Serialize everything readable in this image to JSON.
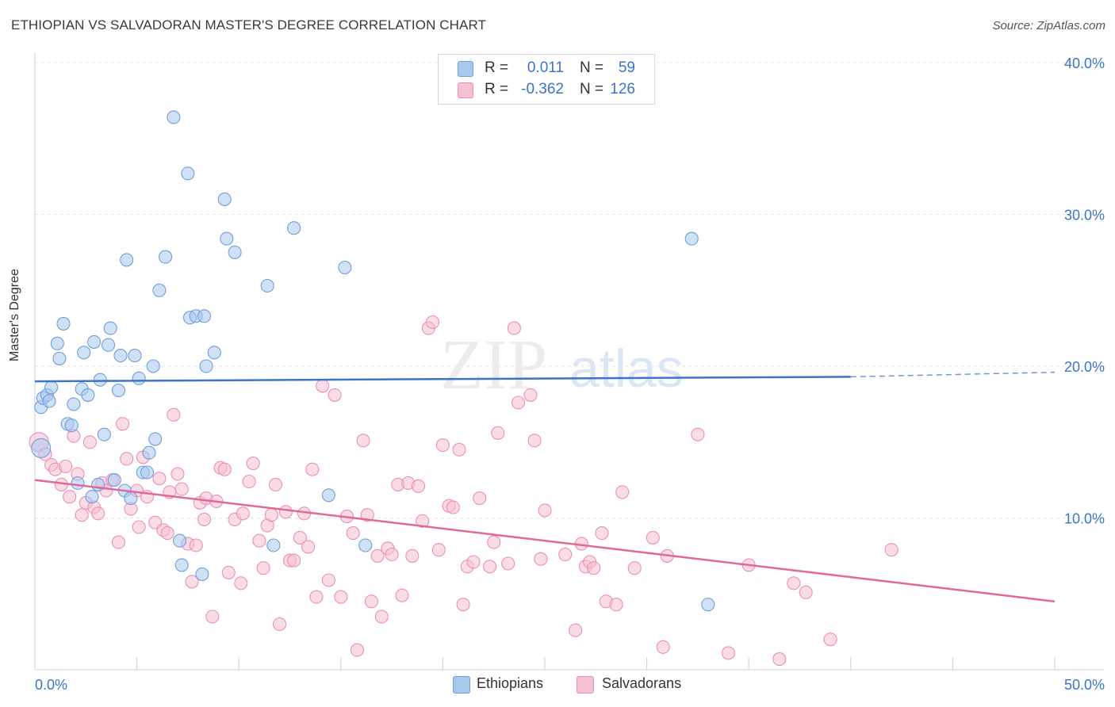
{
  "title": "ETHIOPIAN VS SALVADORAN MASTER'S DEGREE CORRELATION CHART",
  "source": "Source: ZipAtlas.com",
  "watermark": {
    "zip": "ZIP",
    "atlas": "atlas"
  },
  "legend": {
    "rows": [
      {
        "r_label": "R =",
        "r_value": "0.011",
        "n_label": "N =",
        "n_value": "59"
      },
      {
        "r_label": "R =",
        "r_value": "-0.362",
        "n_label": "N =",
        "n_value": "126"
      }
    ]
  },
  "bottom_legend": [
    "Ethiopians",
    "Salvadorans"
  ],
  "colors": {
    "blue": "#3b74c9",
    "blue_fill": "#a9c8ee",
    "blue_stroke": "#6f9fdc",
    "pink": "#e0689a",
    "pink_fill": "#f5c0d3",
    "pink_stroke": "#ec8fb3",
    "grid": "#e3e3e3",
    "axis_text": "#3b74c9"
  },
  "chart_data": {
    "type": "scatter",
    "title": "ETHIOPIAN VS SALVADORAN MASTER'S DEGREE CORRELATION CHART",
    "xlabel": "",
    "ylabel": "Master's Degree",
    "xlim": [
      0,
      50
    ],
    "ylim": [
      0,
      40
    ],
    "x_tick_labels": [
      "0.0%",
      "50.0%"
    ],
    "y_ticks": [
      10,
      20,
      30,
      40
    ],
    "y_tick_labels": [
      "10.0%",
      "20.0%",
      "30.0%",
      "40.0%"
    ],
    "series": [
      {
        "name": "Ethiopians",
        "r": 0.011,
        "n": 59,
        "trend": {
          "x0": 0,
          "y0": 19.0,
          "x1": 40,
          "y1": 19.3,
          "dash_to_x": 50,
          "dash_to_y": 19.6
        },
        "points": [
          [
            0.3,
            14.6
          ],
          [
            0.3,
            17.3
          ],
          [
            0.4,
            17.9
          ],
          [
            0.6,
            18.1
          ],
          [
            0.7,
            17.7
          ],
          [
            0.8,
            18.6
          ],
          [
            1.1,
            21.5
          ],
          [
            1.2,
            20.5
          ],
          [
            1.4,
            22.8
          ],
          [
            1.6,
            16.2
          ],
          [
            1.8,
            16.1
          ],
          [
            1.9,
            17.5
          ],
          [
            2.1,
            12.3
          ],
          [
            2.3,
            18.5
          ],
          [
            2.4,
            20.9
          ],
          [
            2.6,
            18.1
          ],
          [
            2.8,
            11.4
          ],
          [
            2.9,
            21.6
          ],
          [
            3.1,
            12.2
          ],
          [
            3.2,
            19.1
          ],
          [
            3.4,
            15.5
          ],
          [
            3.6,
            21.4
          ],
          [
            3.7,
            22.5
          ],
          [
            3.9,
            12.5
          ],
          [
            4.1,
            18.4
          ],
          [
            4.2,
            20.7
          ],
          [
            4.4,
            11.8
          ],
          [
            4.5,
            27.0
          ],
          [
            4.7,
            11.3
          ],
          [
            4.9,
            20.7
          ],
          [
            5.1,
            19.2
          ],
          [
            5.3,
            13.0
          ],
          [
            5.5,
            13.0
          ],
          [
            5.6,
            14.3
          ],
          [
            5.8,
            20.0
          ],
          [
            5.9,
            15.2
          ],
          [
            6.1,
            25.0
          ],
          [
            6.4,
            27.2
          ],
          [
            6.8,
            36.4
          ],
          [
            7.1,
            8.5
          ],
          [
            7.2,
            6.9
          ],
          [
            7.5,
            32.7
          ],
          [
            7.6,
            23.2
          ],
          [
            7.9,
            23.3
          ],
          [
            8.3,
            23.3
          ],
          [
            8.4,
            20.0
          ],
          [
            8.2,
            6.3
          ],
          [
            8.8,
            20.9
          ],
          [
            9.3,
            31.0
          ],
          [
            9.4,
            28.4
          ],
          [
            9.8,
            27.5
          ],
          [
            11.4,
            25.3
          ],
          [
            11.7,
            8.2
          ],
          [
            12.7,
            29.1
          ],
          [
            14.4,
            11.5
          ],
          [
            15.2,
            26.5
          ],
          [
            16.2,
            8.2
          ],
          [
            32.2,
            28.4
          ],
          [
            33.0,
            4.3
          ]
        ]
      },
      {
        "name": "Salvadorans",
        "r": -0.362,
        "n": 126,
        "trend": {
          "x0": 0,
          "y0": 12.5,
          "x1": 50,
          "y1": 4.5
        },
        "points": [
          [
            0.2,
            15.0
          ],
          [
            0.5,
            14.2
          ],
          [
            0.8,
            13.5
          ],
          [
            1.0,
            13.2
          ],
          [
            1.3,
            12.2
          ],
          [
            1.5,
            13.4
          ],
          [
            1.7,
            11.4
          ],
          [
            1.9,
            15.4
          ],
          [
            2.1,
            12.9
          ],
          [
            2.3,
            10.2
          ],
          [
            2.5,
            11.0
          ],
          [
            2.7,
            15.0
          ],
          [
            2.9,
            10.7
          ],
          [
            3.1,
            10.3
          ],
          [
            3.3,
            12.3
          ],
          [
            3.5,
            11.8
          ],
          [
            3.8,
            12.5
          ],
          [
            4.1,
            8.4
          ],
          [
            4.3,
            16.2
          ],
          [
            4.5,
            13.9
          ],
          [
            4.7,
            10.6
          ],
          [
            5.0,
            11.8
          ],
          [
            5.1,
            9.4
          ],
          [
            5.3,
            14.0
          ],
          [
            5.5,
            11.4
          ],
          [
            5.9,
            9.7
          ],
          [
            6.1,
            12.6
          ],
          [
            6.3,
            9.2
          ],
          [
            6.5,
            9.0
          ],
          [
            6.6,
            11.7
          ],
          [
            6.8,
            16.8
          ],
          [
            7.0,
            12.9
          ],
          [
            7.2,
            11.9
          ],
          [
            7.5,
            8.3
          ],
          [
            7.7,
            5.8
          ],
          [
            7.9,
            8.2
          ],
          [
            8.1,
            11.0
          ],
          [
            8.3,
            9.9
          ],
          [
            8.4,
            11.3
          ],
          [
            8.7,
            3.5
          ],
          [
            8.9,
            11.1
          ],
          [
            9.1,
            13.3
          ],
          [
            9.3,
            13.2
          ],
          [
            9.5,
            6.4
          ],
          [
            9.8,
            9.9
          ],
          [
            10.1,
            5.7
          ],
          [
            10.2,
            10.3
          ],
          [
            10.5,
            12.4
          ],
          [
            10.7,
            13.6
          ],
          [
            11.0,
            8.5
          ],
          [
            11.2,
            6.7
          ],
          [
            11.4,
            9.5
          ],
          [
            11.6,
            10.2
          ],
          [
            11.8,
            12.2
          ],
          [
            12.0,
            3.0
          ],
          [
            12.3,
            10.4
          ],
          [
            12.5,
            7.2
          ],
          [
            12.7,
            7.2
          ],
          [
            13.0,
            8.7
          ],
          [
            13.2,
            10.3
          ],
          [
            13.4,
            8.1
          ],
          [
            13.6,
            13.2
          ],
          [
            13.8,
            4.8
          ],
          [
            14.1,
            18.7
          ],
          [
            14.4,
            5.9
          ],
          [
            14.7,
            18.1
          ],
          [
            15.0,
            4.8
          ],
          [
            15.3,
            10.1
          ],
          [
            15.6,
            9.0
          ],
          [
            15.8,
            1.3
          ],
          [
            16.1,
            15.1
          ],
          [
            16.3,
            10.2
          ],
          [
            16.5,
            4.5
          ],
          [
            16.8,
            7.5
          ],
          [
            17.0,
            3.5
          ],
          [
            17.3,
            8.0
          ],
          [
            17.5,
            7.6
          ],
          [
            17.8,
            12.2
          ],
          [
            18.0,
            4.9
          ],
          [
            18.3,
            12.3
          ],
          [
            18.5,
            7.5
          ],
          [
            18.8,
            12.1
          ],
          [
            19.0,
            9.8
          ],
          [
            19.3,
            22.5
          ],
          [
            19.5,
            22.9
          ],
          [
            19.8,
            7.9
          ],
          [
            20.0,
            14.8
          ],
          [
            20.3,
            10.8
          ],
          [
            20.5,
            10.7
          ],
          [
            20.8,
            14.5
          ],
          [
            21.0,
            4.3
          ],
          [
            21.2,
            6.8
          ],
          [
            21.5,
            7.1
          ],
          [
            21.8,
            11.3
          ],
          [
            22.3,
            6.8
          ],
          [
            22.5,
            8.4
          ],
          [
            22.7,
            15.6
          ],
          [
            23.2,
            7.0
          ],
          [
            23.5,
            22.5
          ],
          [
            23.7,
            17.6
          ],
          [
            24.3,
            18.1
          ],
          [
            24.5,
            15.1
          ],
          [
            24.8,
            7.3
          ],
          [
            25.0,
            10.5
          ],
          [
            26.0,
            7.6
          ],
          [
            26.5,
            2.6
          ],
          [
            26.8,
            8.3
          ],
          [
            27.0,
            6.8
          ],
          [
            27.2,
            7.1
          ],
          [
            27.4,
            6.7
          ],
          [
            27.8,
            9.0
          ],
          [
            28.0,
            4.5
          ],
          [
            28.5,
            4.3
          ],
          [
            28.8,
            11.7
          ],
          [
            29.4,
            6.7
          ],
          [
            30.3,
            8.7
          ],
          [
            30.8,
            1.5
          ],
          [
            31.0,
            7.5
          ],
          [
            32.5,
            15.5
          ],
          [
            34.0,
            1.1
          ],
          [
            35.0,
            6.9
          ],
          [
            36.5,
            0.7
          ],
          [
            37.2,
            5.7
          ],
          [
            37.8,
            5.1
          ],
          [
            39.0,
            2.0
          ],
          [
            42.0,
            7.9
          ]
        ]
      }
    ]
  }
}
